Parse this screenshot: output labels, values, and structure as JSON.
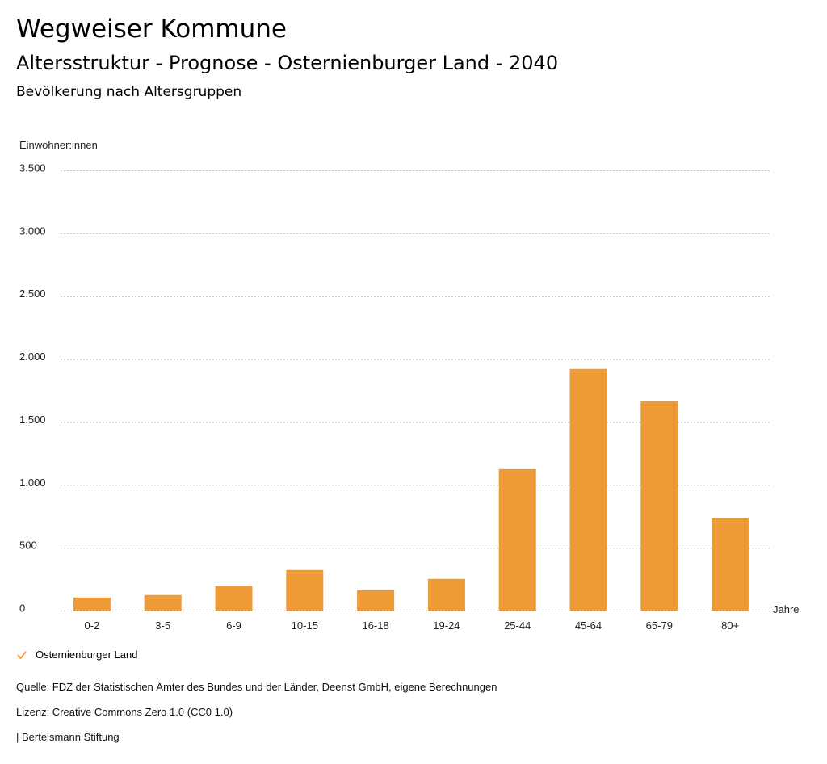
{
  "header": {
    "title": "Wegweiser Kommune",
    "subtitle": "Altersstruktur - Prognose - Osternienburger Land - 2040",
    "chart_heading": "Bevölkerung nach Altersgruppen"
  },
  "colors": {
    "bar": "#ED9A37",
    "grid": "#bbbbbb",
    "text": "#222222"
  },
  "chart_data": {
    "type": "bar",
    "title": "Bevölkerung nach Altersgruppen",
    "xlabel": "Jahre",
    "ylabel": "Einwohner:innen",
    "ylim": [
      0,
      3500
    ],
    "yticks": [
      0,
      500,
      1000,
      1500,
      2000,
      2500,
      3000,
      3500
    ],
    "ytick_labels": [
      "0",
      "500",
      "1.000",
      "1.500",
      "2.000",
      "2.500",
      "3.000",
      "3.500"
    ],
    "grid": true,
    "legend_position": "bottom-left",
    "categories": [
      "0-2",
      "3-5",
      "6-9",
      "10-15",
      "16-18",
      "19-24",
      "25-44",
      "45-64",
      "65-79",
      "80+"
    ],
    "series": [
      {
        "name": "Osternienburger Land",
        "values": [
          107,
          127,
          197,
          326,
          165,
          255,
          1128,
          1925,
          1668,
          737
        ]
      }
    ]
  },
  "legend": {
    "items": [
      {
        "label": "Osternienburger Land",
        "icon": "check-icon"
      }
    ]
  },
  "footer": {
    "source": "Quelle: FDZ der Statistischen Ämter des Bundes und der Länder, Deenst GmbH, eigene Berechnungen",
    "license": "Lizenz: Creative Commons Zero 1.0 (CC0 1.0)",
    "publisher": "| Bertelsmann Stiftung"
  }
}
